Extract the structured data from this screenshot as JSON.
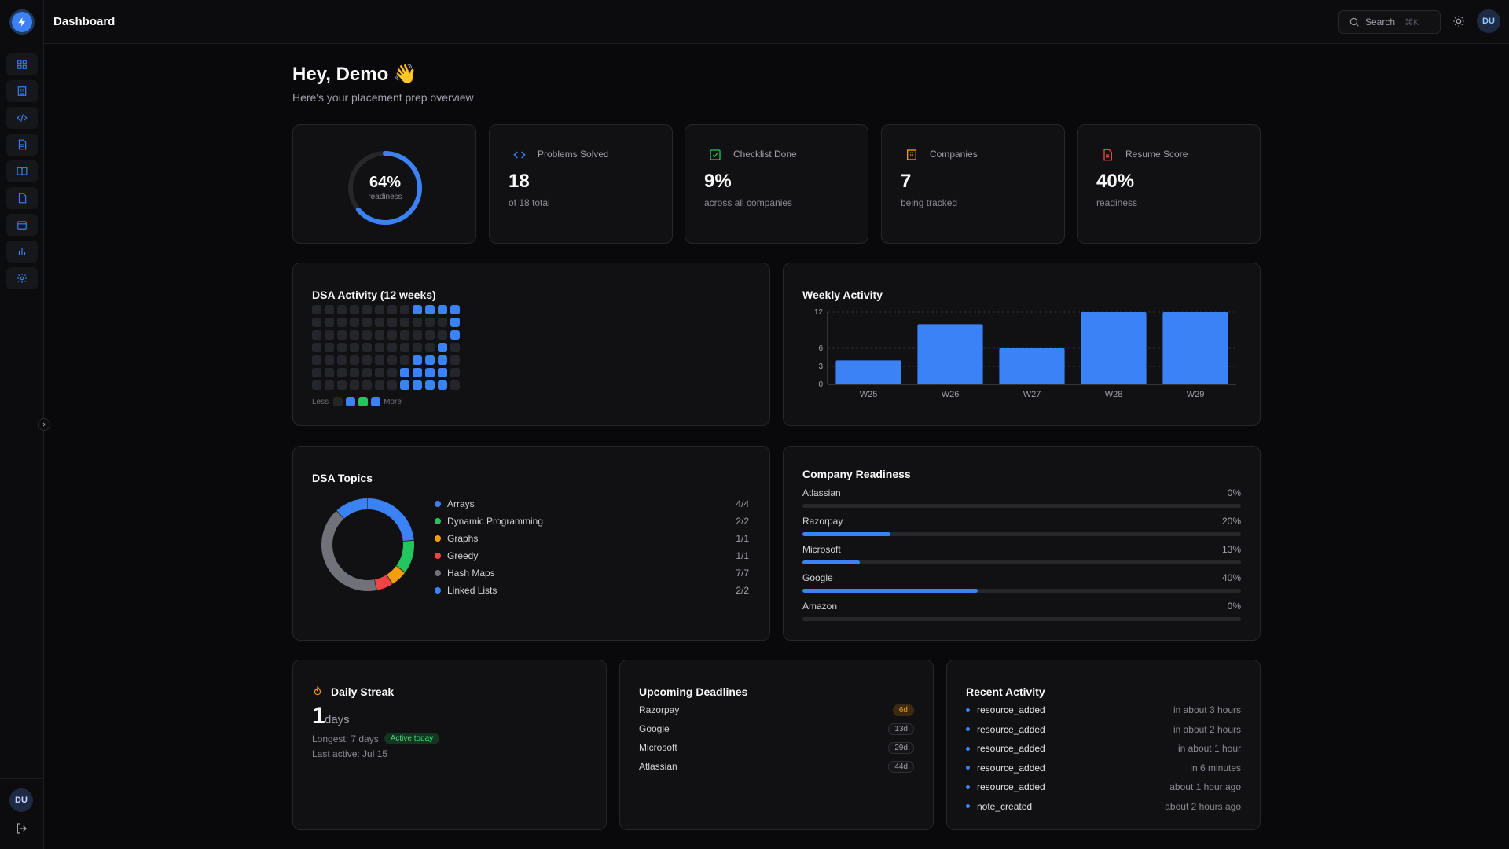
{
  "header": {
    "title": "Dashboard",
    "search_label": "Search",
    "search_shortcut": "⌘K",
    "avatar": "DU"
  },
  "sidebar": {
    "items": [
      {
        "icon": "dashboard-icon"
      },
      {
        "icon": "building-icon"
      },
      {
        "icon": "code-icon"
      },
      {
        "icon": "document-icon"
      },
      {
        "icon": "book-icon"
      },
      {
        "icon": "file-icon"
      },
      {
        "icon": "calendar-icon"
      },
      {
        "icon": "bar-chart-icon"
      },
      {
        "icon": "gear-icon"
      }
    ],
    "avatar": "DU"
  },
  "greeting": {
    "title": "Hey, Demo 👋",
    "subtitle": "Here's your placement prep overview"
  },
  "readiness": {
    "value": "64%",
    "label": "readiness",
    "fraction": 0.64
  },
  "stats": [
    {
      "label": "Problems Solved",
      "value": "18",
      "sub": "of 18 total",
      "icon": "code-icon",
      "color": "#3b82f6"
    },
    {
      "label": "Checklist Done",
      "value": "9%",
      "sub": "across all companies",
      "icon": "check-square-icon",
      "color": "#22c55e"
    },
    {
      "label": "Companies",
      "value": "7",
      "sub": "being tracked",
      "icon": "building-icon",
      "color": "#f59e0b"
    },
    {
      "label": "Resume Score",
      "value": "40%",
      "sub": "readiness",
      "icon": "document-icon",
      "color": "#ef4444"
    }
  ],
  "dsa_activity": {
    "title": "DSA Activity (12 weeks)",
    "legend_less": "Less",
    "legend_more": "More",
    "active_cells": [
      [
        8,
        0
      ],
      [
        9,
        0
      ],
      [
        10,
        0
      ],
      [
        11,
        0
      ],
      [
        11,
        1
      ],
      [
        11,
        2
      ],
      [
        10,
        3
      ],
      [
        8,
        4
      ],
      [
        9,
        4
      ],
      [
        10,
        4
      ],
      [
        7,
        5
      ],
      [
        8,
        5
      ],
      [
        9,
        5
      ],
      [
        10,
        5
      ],
      [
        7,
        6
      ],
      [
        8,
        6
      ],
      [
        9,
        6
      ],
      [
        10,
        6
      ]
    ]
  },
  "weekly_activity": {
    "title": "Weekly Activity",
    "chart_data": {
      "type": "bar",
      "categories": [
        "W25",
        "W26",
        "W27",
        "W28",
        "W29"
      ],
      "values": [
        4,
        10,
        6,
        12,
        12
      ],
      "yticks": [
        0,
        3,
        6,
        12
      ],
      "ylim": [
        0,
        12
      ],
      "grid": "dashed-horizontal",
      "color": "#3b82f6"
    }
  },
  "dsa_topics": {
    "title": "DSA Topics",
    "chart_data": {
      "type": "pie",
      "categories": [
        "Arrays",
        "Dynamic Programming",
        "Graphs",
        "Greedy",
        "Hash Maps",
        "Linked Lists"
      ],
      "values": [
        4,
        2,
        1,
        1,
        7,
        2
      ],
      "counts": [
        "4/4",
        "2/2",
        "1/1",
        "1/1",
        "7/7",
        "2/2"
      ],
      "colors": [
        "#3b82f6",
        "#22c55e",
        "#f59e0b",
        "#ef4444",
        "#71717a",
        "#3b82f6"
      ]
    }
  },
  "company_readiness": {
    "title": "Company Readiness",
    "companies": [
      {
        "name": "Atlassian",
        "pct": "0%",
        "value": 0
      },
      {
        "name": "Razorpay",
        "pct": "20%",
        "value": 20
      },
      {
        "name": "Microsoft",
        "pct": "13%",
        "value": 13
      },
      {
        "name": "Google",
        "pct": "40%",
        "value": 40
      },
      {
        "name": "Amazon",
        "pct": "0%",
        "value": 0
      }
    ]
  },
  "streak": {
    "title": "Daily Streak",
    "count": "1",
    "unit": "days",
    "longest": "Longest: 7 days",
    "badge": "Active today",
    "last_active": "Last active: Jul 15"
  },
  "deadlines": {
    "title": "Upcoming Deadlines",
    "items": [
      {
        "name": "Razorpay",
        "days": "6d",
        "urgent": true
      },
      {
        "name": "Google",
        "days": "13d",
        "urgent": false
      },
      {
        "name": "Microsoft",
        "days": "29d",
        "urgent": false
      },
      {
        "name": "Atlassian",
        "days": "44d",
        "urgent": false
      }
    ]
  },
  "recent_activity": {
    "title": "Recent Activity",
    "items": [
      {
        "name": "resource_added",
        "time": "in about 3 hours"
      },
      {
        "name": "resource_added",
        "time": "in about 2 hours"
      },
      {
        "name": "resource_added",
        "time": "in about 1 hour"
      },
      {
        "name": "resource_added",
        "time": "in 6 minutes"
      },
      {
        "name": "resource_added",
        "time": "about 1 hour ago"
      },
      {
        "name": "note_created",
        "time": "about 2 hours ago"
      }
    ]
  }
}
